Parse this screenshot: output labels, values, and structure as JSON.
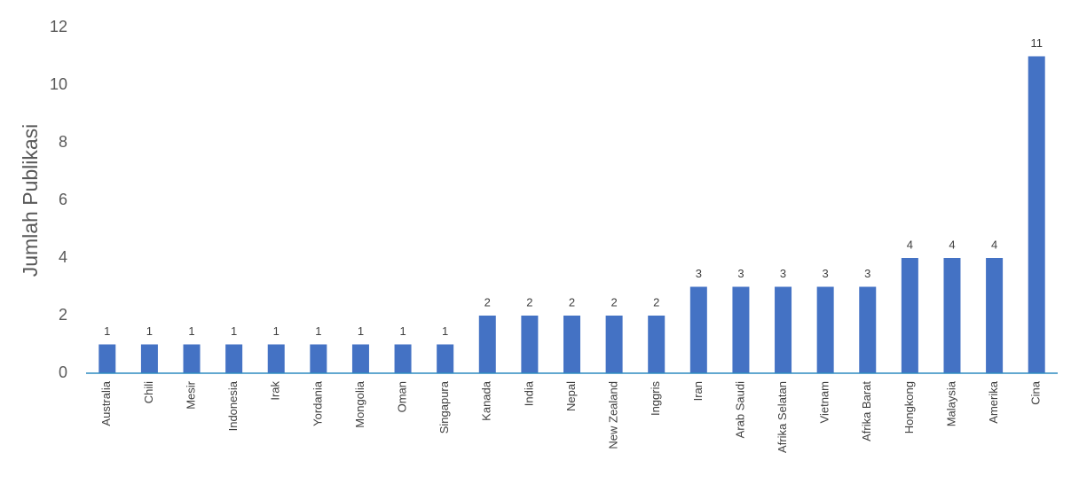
{
  "chart_data": {
    "type": "bar",
    "y_label": "Jumlah Publikasi",
    "categories": [
      "Australia",
      "Chili",
      "Mesir",
      "Indonesia",
      "Irak",
      "Yordania",
      "Mongolia",
      "Oman",
      "Singapura",
      "Kanada",
      "India",
      "Nepal",
      "New Zealand",
      "Inggris",
      "Iran",
      "Arab Saudi",
      "Afrika Selatan",
      "Vietnam",
      "Afrika Barat",
      "Hongkong",
      "Malaysia",
      "Amerika",
      "Cina"
    ],
    "values": [
      1,
      1,
      1,
      1,
      1,
      1,
      1,
      1,
      1,
      2,
      2,
      2,
      2,
      2,
      3,
      3,
      3,
      3,
      3,
      4,
      4,
      4,
      11
    ],
    "color": "#4472c4",
    "data_labels": true,
    "ylim": [
      0,
      12
    ],
    "yticks": [
      0,
      2,
      4,
      6,
      8,
      10,
      12
    ],
    "grid": false
  }
}
